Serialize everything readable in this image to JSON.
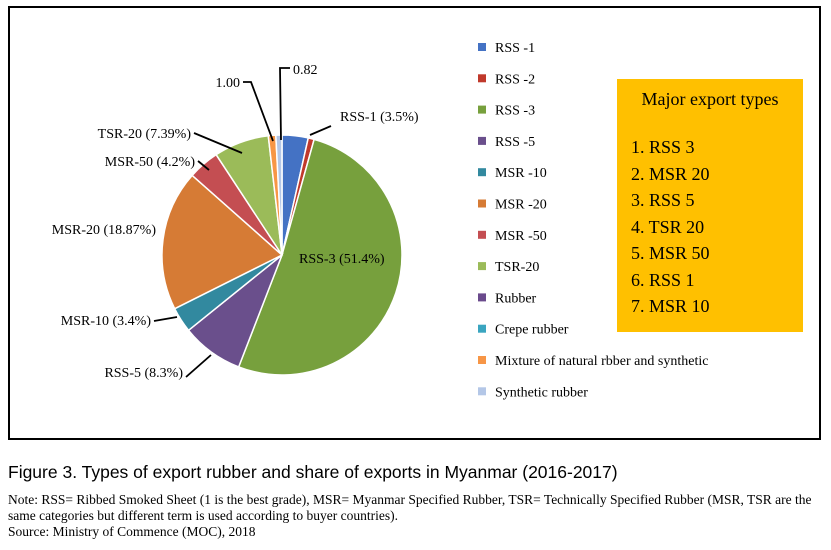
{
  "chart_data": {
    "type": "pie",
    "slices": [
      {
        "name": "RSS -1",
        "value": 3.5,
        "color": "#4472c4",
        "label": "RSS-1 (3.5%)"
      },
      {
        "name": "RSS -2",
        "value": 0.8,
        "color": "#c0392b",
        "label": ""
      },
      {
        "name": "RSS -3",
        "value": 51.4,
        "color": "#77a03d",
        "label": "RSS-3 (51.4%)"
      },
      {
        "name": "RSS -5",
        "value": 8.3,
        "color": "#6a4f8c",
        "label": "RSS-5 (8.3%)"
      },
      {
        "name": "MSR -10",
        "value": 3.4,
        "color": "#32899f",
        "label": "MSR-10 (3.4%)"
      },
      {
        "name": "MSR -20",
        "value": 18.87,
        "color": "#d67b35",
        "label": "MSR-20 (18.87%)"
      },
      {
        "name": "MSR -50",
        "value": 4.2,
        "color": "#c44e52",
        "label": "MSR-50 (4.2%)"
      },
      {
        "name": "TSR-20",
        "value": 7.39,
        "color": "#9bbb59",
        "label": "TSR-20 (7.39%)"
      },
      {
        "name": "Rubber",
        "value": 0,
        "color": "#6a4a8c",
        "label": ""
      },
      {
        "name": "Crepe rubber",
        "value": 0,
        "color": "#3aa5c0",
        "label": ""
      },
      {
        "name": "Mixture of natural rbber and synthetic",
        "value": 1.0,
        "color": "#f79646",
        "label": "1.00"
      },
      {
        "name": "Synthetic rubber",
        "value": 0.82,
        "color": "#b4c7e7",
        "label": "0.82"
      }
    ],
    "legend_position": "right"
  },
  "major_box": {
    "title": "Major export types",
    "items": [
      "1. RSS 3",
      "2. MSR 20",
      "3. RSS 5",
      "4. TSR 20",
      "5. MSR 50",
      "6. RSS 1",
      "7. MSR 10"
    ],
    "color": "#ffc000"
  },
  "caption": "Figure 3. Types of export rubber and share of exports in Myanmar (2016-2017)",
  "note": "Note: RSS= Ribbed Smoked Sheet (1 is the best grade), MSR= Myanmar Specified Rubber, TSR= Technically Specified Rubber (MSR, TSR are the same categories but different term is used according to buyer countries).",
  "source": "Source: Ministry of Commence (MOC), 2018"
}
